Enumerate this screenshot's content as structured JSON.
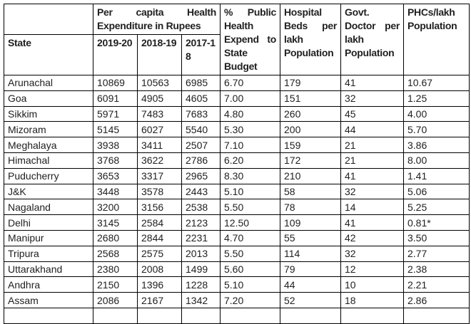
{
  "table": {
    "headers": {
      "corner": "",
      "state": "State",
      "per_capita_group": "Per capita Health Expenditure in Rupees",
      "years": [
        "2019-20",
        "2018-19",
        "2017-18"
      ],
      "pct_public_health": "% Public Health Expend to State Budget",
      "hospital_beds": "Hospital Beds per lakh Population",
      "govt_doctor": "Govt. Doctor per lakh Population",
      "phcs": "PHCs/lakh Population"
    },
    "column_keys": [
      "state",
      "exp_2019_20",
      "exp_2018_19",
      "exp_2017_18",
      "pct_public_health",
      "hospital_beds",
      "govt_doctor",
      "phcs"
    ],
    "rows": [
      {
        "state": "Arunachal",
        "exp_2019_20": "10869",
        "exp_2018_19": "10563",
        "exp_2017_18": "6985",
        "pct_public_health": "6.70",
        "hospital_beds": "179",
        "govt_doctor": "41",
        "phcs": "10.67"
      },
      {
        "state": "Goa",
        "exp_2019_20": "6091",
        "exp_2018_19": "4905",
        "exp_2017_18": "4605",
        "pct_public_health": "7.00",
        "hospital_beds": "151",
        "govt_doctor": "32",
        "phcs": "1.25"
      },
      {
        "state": "Sikkim",
        "exp_2019_20": "5971",
        "exp_2018_19": "7483",
        "exp_2017_18": "7683",
        "pct_public_health": "4.80",
        "hospital_beds": "260",
        "govt_doctor": "45",
        "phcs": "4.00"
      },
      {
        "state": "Mizoram",
        "exp_2019_20": "5145",
        "exp_2018_19": "6027",
        "exp_2017_18": "5540",
        "pct_public_health": "5.30",
        "hospital_beds": "200",
        "govt_doctor": "44",
        "phcs": "5.70"
      },
      {
        "state": "Meghalaya",
        "exp_2019_20": "3938",
        "exp_2018_19": "3411",
        "exp_2017_18": "2507",
        "pct_public_health": "7.10",
        "hospital_beds": "159",
        "govt_doctor": "21",
        "phcs": "3.86"
      },
      {
        "state": "Himachal",
        "exp_2019_20": "3768",
        "exp_2018_19": "3622",
        "exp_2017_18": "2786",
        "pct_public_health": "6.20",
        "hospital_beds": "172",
        "govt_doctor": "21",
        "phcs": "8.00"
      },
      {
        "state": "Puducherry",
        "exp_2019_20": "3653",
        "exp_2018_19": "3317",
        "exp_2017_18": "2965",
        "pct_public_health": "8.30",
        "hospital_beds": "210",
        "govt_doctor": "41",
        "phcs": "1.41"
      },
      {
        "state": "J&K",
        "exp_2019_20": "3448",
        "exp_2018_19": "3578",
        "exp_2017_18": "2443",
        "pct_public_health": "5.10",
        "hospital_beds": "58",
        "govt_doctor": "32",
        "phcs": "5.06"
      },
      {
        "state": "Nagaland",
        "exp_2019_20": "3200",
        "exp_2018_19": "3156",
        "exp_2017_18": "2538",
        "pct_public_health": "5.50",
        "hospital_beds": "78",
        "govt_doctor": "14",
        "phcs": "5.25"
      },
      {
        "state": "Delhi",
        "exp_2019_20": "3145",
        "exp_2018_19": "2584",
        "exp_2017_18": "2123",
        "pct_public_health": "12.50",
        "hospital_beds": "109",
        "govt_doctor": "41",
        "phcs": "0.81*"
      },
      {
        "state": "Manipur",
        "exp_2019_20": "2680",
        "exp_2018_19": "2844",
        "exp_2017_18": "2231",
        "pct_public_health": "4.70",
        "hospital_beds": "55",
        "govt_doctor": "42",
        "phcs": "3.50"
      },
      {
        "state": "Tripura",
        "exp_2019_20": "2568",
        "exp_2018_19": "2575",
        "exp_2017_18": "2013",
        "pct_public_health": "5.50",
        "hospital_beds": "114",
        "govt_doctor": "32",
        "phcs": "2.77"
      },
      {
        "state": "Uttarakhand",
        "exp_2019_20": "2380",
        "exp_2018_19": "2008",
        "exp_2017_18": "1499",
        "pct_public_health": "5.60",
        "hospital_beds": "79",
        "govt_doctor": "12",
        "phcs": "2.38"
      },
      {
        "state": "Andhra",
        "exp_2019_20": "2150",
        "exp_2018_19": "1396",
        "exp_2017_18": "1228",
        "pct_public_health": "5.10",
        "hospital_beds": "44",
        "govt_doctor": "10",
        "phcs": "2.21"
      },
      {
        "state": "Assam",
        "exp_2019_20": "2086",
        "exp_2018_19": "2167",
        "exp_2017_18": "1342",
        "pct_public_health": "7.20",
        "hospital_beds": "52",
        "govt_doctor": "18",
        "phcs": "2.86"
      }
    ]
  },
  "colors": {
    "border": "#000000",
    "text": "#212121",
    "background": "#ffffff"
  }
}
